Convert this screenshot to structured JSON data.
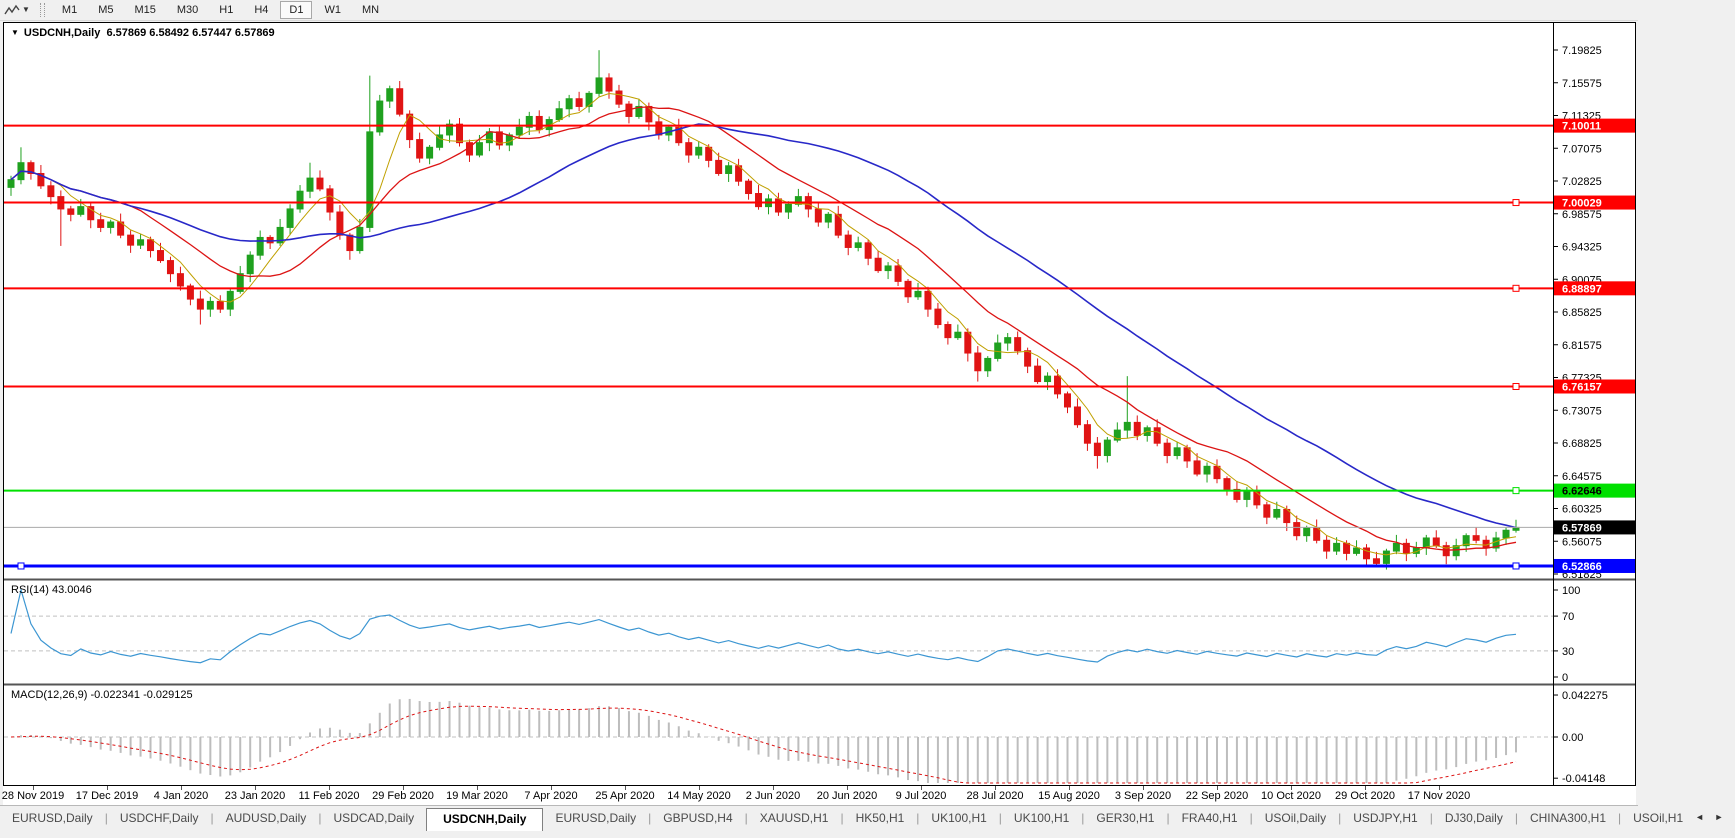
{
  "toolbar": {
    "indicator_icon": "zigzag-chart-icon",
    "dropdown_icon": "▼",
    "timeframes": [
      "M1",
      "M5",
      "M15",
      "M30",
      "H1",
      "H4",
      "D1",
      "W1",
      "MN"
    ],
    "active_timeframe": "D1"
  },
  "title": {
    "collapse_icon": "▼",
    "symbol_timeframe": "USDCNH,Daily",
    "ohlc": "6.57869 6.58492 6.57447 6.57869"
  },
  "chart_data": {
    "type": "candlestick",
    "symbol": "USDCNH",
    "timeframe": "Daily",
    "ohlc_display": {
      "open": "6.57869",
      "high": "6.58492",
      "low": "6.57447",
      "close": "6.57869"
    },
    "price_axis": {
      "min": 6.51825,
      "max": 7.19825,
      "ticks": [
        "7.19825",
        "7.15575",
        "7.11325",
        "7.07075",
        "7.02825",
        "6.98575",
        "6.94325",
        "6.90075",
        "6.85825",
        "6.81575",
        "6.77325",
        "6.73075",
        "6.68825",
        "6.64575",
        "6.60325",
        "6.56075",
        "6.51825"
      ]
    },
    "x_axis": {
      "dates": [
        "28 Nov 2019",
        "17 Dec 2019",
        "4 Jan 2020",
        "23 Jan 2020",
        "11 Feb 2020",
        "29 Feb 2020",
        "19 Mar 2020",
        "7 Apr 2020",
        "25 Apr 2020",
        "14 May 2020",
        "2 Jun 2020",
        "20 Jun 2020",
        "9 Jul 2020",
        "28 Jul 2020",
        "15 Aug 2020",
        "3 Sep 2020",
        "22 Sep 2020",
        "10 Oct 2020",
        "29 Oct 2020",
        "17 Nov 2020"
      ]
    },
    "candles": {
      "open_seed": 7.02,
      "up_color": "#1fa11f",
      "down_color": "#e01414",
      "closes": [
        7.03,
        7.052,
        7.038,
        7.022,
        7.008,
        6.992,
        6.985,
        6.995,
        6.978,
        6.968,
        6.975,
        6.958,
        6.945,
        6.952,
        6.938,
        6.925,
        6.908,
        6.892,
        6.875,
        6.862,
        6.872,
        6.862,
        6.885,
        6.908,
        6.932,
        6.955,
        6.948,
        6.968,
        6.992,
        7.015,
        7.032,
        7.018,
        6.988,
        6.958,
        6.938,
        6.968,
        7.092,
        7.132,
        7.148,
        7.115,
        7.082,
        7.058,
        7.072,
        7.088,
        7.102,
        7.078,
        7.062,
        7.078,
        7.092,
        7.075,
        7.088,
        7.098,
        7.112,
        7.095,
        7.108,
        7.122,
        7.135,
        7.125,
        7.142,
        7.162,
        7.145,
        7.128,
        7.112,
        7.125,
        7.105,
        7.088,
        7.098,
        7.078,
        7.062,
        7.072,
        7.055,
        7.038,
        7.048,
        7.028,
        7.012,
        6.995,
        7.005,
        6.988,
        6.998,
        7.008,
        6.992,
        6.975,
        6.985,
        6.958,
        6.942,
        6.948,
        6.928,
        6.912,
        6.918,
        6.898,
        6.878,
        6.885,
        6.862,
        6.842,
        6.825,
        6.832,
        6.805,
        6.782,
        6.798,
        6.818,
        6.825,
        6.808,
        6.788,
        6.768,
        6.775,
        6.752,
        6.735,
        6.712,
        6.688,
        6.672,
        6.692,
        6.705,
        6.715,
        6.698,
        6.708,
        6.688,
        6.672,
        6.682,
        6.665,
        6.648,
        6.658,
        6.642,
        6.628,
        6.615,
        6.625,
        6.608,
        6.592,
        6.602,
        6.585,
        6.568,
        6.578,
        6.562,
        6.548,
        6.558,
        6.545,
        6.552,
        6.538,
        6.532,
        6.548,
        6.558,
        6.545,
        6.552,
        6.565,
        6.555,
        6.542,
        6.555,
        6.568,
        6.562,
        6.552,
        6.565,
        6.575,
        6.5787
      ],
      "wick_pattern": [
        0.005,
        0.009,
        0.003,
        0.011,
        0.006,
        0.008,
        0.004,
        0.01
      ],
      "wick_overrides": {
        "1": {
          "h": 7.072
        },
        "5": {
          "l": 6.944
        },
        "19": {
          "l": 6.842
        },
        "30": {
          "h": 7.052
        },
        "34": {
          "l": 6.926
        },
        "36": {
          "h": 7.165,
          "l": 6.962
        },
        "59": {
          "h": 7.198
        },
        "97": {
          "l": 6.768
        },
        "109": {
          "l": 6.655
        },
        "112": {
          "h": 6.775
        },
        "137": {
          "l": 6.5287
        }
      }
    },
    "moving_averages": [
      {
        "name": "ma-fast",
        "period": 5,
        "color": "#c0a000",
        "width": 1
      },
      {
        "name": "ma-medium",
        "period": 13,
        "color": "#dc1414",
        "width": 1.3
      },
      {
        "name": "ma-slow",
        "period": 34,
        "color": "#2828c8",
        "width": 1.6
      }
    ],
    "hlines": [
      {
        "value": 7.10011,
        "label": "7.10011",
        "color": "#ff0000",
        "badge_bg": "#ff0000",
        "badge_fg": "#ffffff",
        "width": 2,
        "handle": false
      },
      {
        "value": 7.00029,
        "label": "7.00029",
        "color": "#ff0000",
        "badge_bg": "#ff0000",
        "badge_fg": "#ffffff",
        "width": 2,
        "handle": true
      },
      {
        "value": 6.88897,
        "label": "6.88897",
        "color": "#ff0000",
        "badge_bg": "#ff0000",
        "badge_fg": "#ffffff",
        "width": 2,
        "handle": true
      },
      {
        "value": 6.76157,
        "label": "6.76157",
        "color": "#ff0000",
        "badge_bg": "#ff0000",
        "badge_fg": "#ffffff",
        "width": 2,
        "handle": true
      },
      {
        "value": 6.62646,
        "label": "6.62646",
        "color": "#00e000",
        "badge_bg": "#00e000",
        "badge_fg": "#000000",
        "width": 2,
        "handle": true
      },
      {
        "value": 6.52866,
        "label": "6.52866",
        "color": "#0000ff",
        "badge_bg": "#0000ff",
        "badge_fg": "#ffffff",
        "width": 3,
        "handle": true,
        "left_handle": true
      }
    ],
    "current_price": {
      "value": 6.57869,
      "label": "6.57869",
      "line_color": "#aaaaaa",
      "badge_bg": "#000000",
      "badge_fg": "#ffffff"
    },
    "rsi": {
      "label": "RSI(14) 43.0046",
      "period": 14,
      "value": 43.0046,
      "levels": [
        "100",
        "70",
        "30",
        "0"
      ],
      "dashed_levels": [
        70,
        30
      ],
      "color": "#3c96d2"
    },
    "macd": {
      "label": "MACD(12,26,9) -0.022341 -0.029125",
      "fast": 12,
      "slow": 26,
      "signal": 9,
      "macd_value": -0.022341,
      "signal_value": -0.029125,
      "axis_labels": [
        "0.042275",
        "0.00",
        "-0.04148"
      ],
      "axis_values": [
        0.042275,
        0.0,
        -0.04148
      ],
      "hist_color": "#bdbdbd",
      "signal_color": "#dc1414"
    }
  },
  "tabs": {
    "items": [
      "EURUSD,Daily",
      "USDCHF,Daily",
      "AUDUSD,Daily",
      "USDCAD,Daily",
      "USDCNH,Daily",
      "EURUSD,Daily",
      "GBPUSD,H4",
      "XAUUSD,H1",
      "HK50,H1",
      "UK100,H1",
      "UK100,H1",
      "GER30,H1",
      "FRA40,H1",
      "USOil,Daily",
      "USDJPY,H1",
      "DJ30,Daily",
      "CHINA300,H1",
      "USOil,H1"
    ],
    "active_index": 4,
    "scroll_left_icon": "◄",
    "scroll_right_icon": "►"
  }
}
